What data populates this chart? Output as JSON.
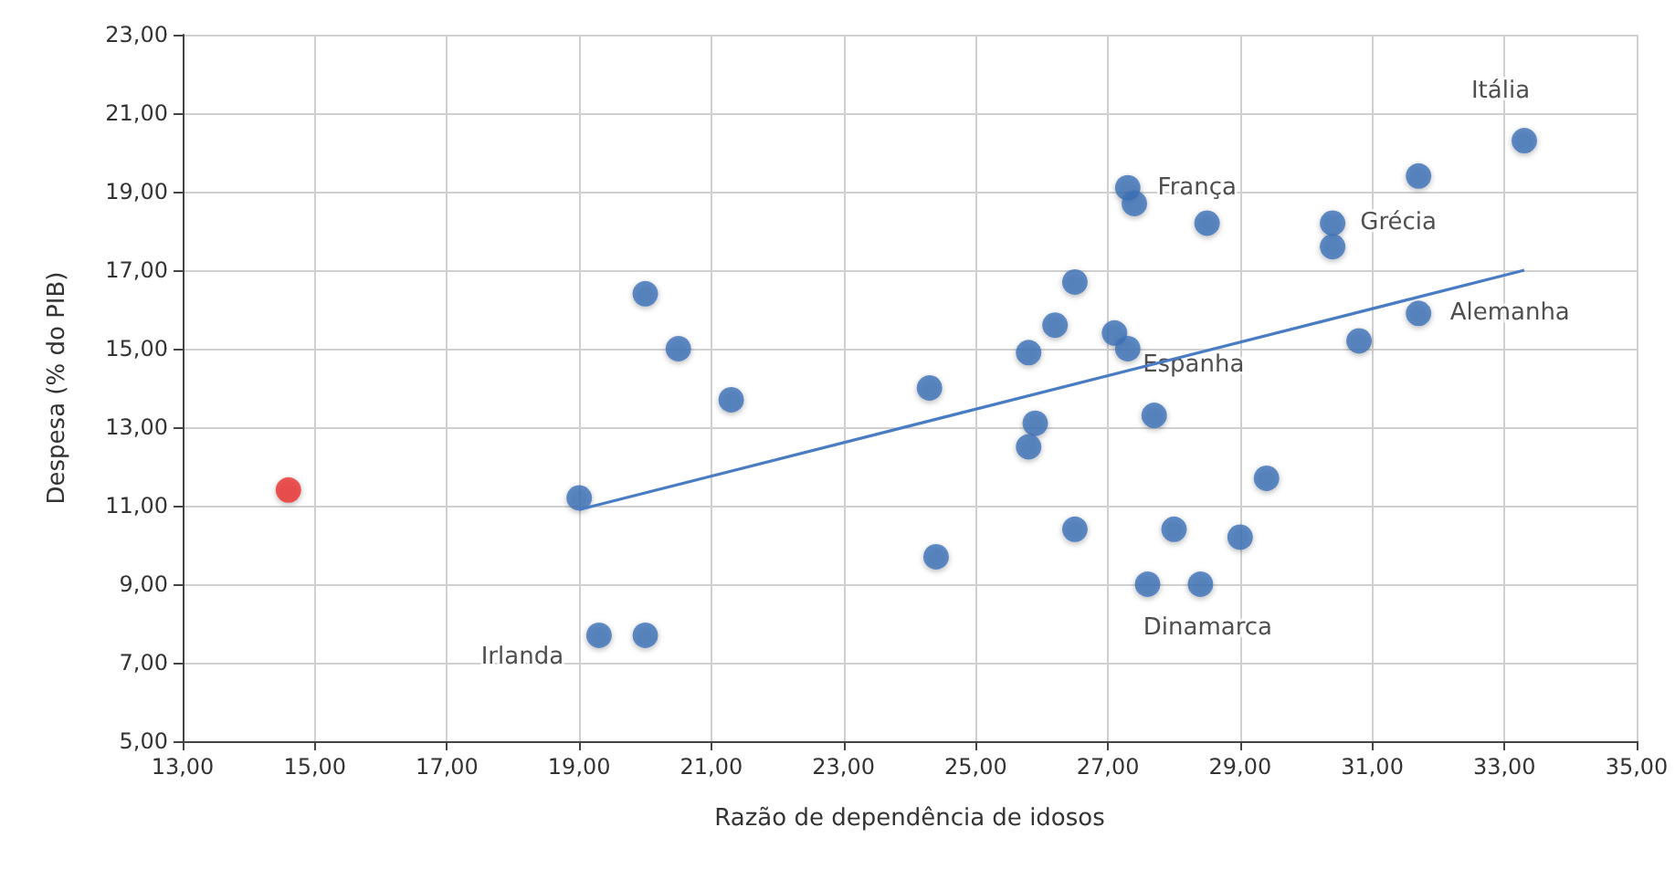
{
  "chart_data": {
    "type": "scatter",
    "xlabel": "Razão de dependência de idosos",
    "ylabel": "Despesa (% do PIB)",
    "grid": true,
    "marker": "circle",
    "xlim": [
      13,
      35
    ],
    "xticks": [
      {
        "value": 13,
        "label": "13,00"
      },
      {
        "value": 15,
        "label": "15,00"
      },
      {
        "value": 17,
        "label": "17,00"
      },
      {
        "value": 19,
        "label": "19,00"
      },
      {
        "value": 21,
        "label": "21,00"
      },
      {
        "value": 23,
        "label": "23,00"
      },
      {
        "value": 25,
        "label": "25,00"
      },
      {
        "value": 27,
        "label": "27,00"
      },
      {
        "value": 29,
        "label": "29,00"
      },
      {
        "value": 31,
        "label": "31,00"
      },
      {
        "value": 33,
        "label": "33,00"
      },
      {
        "value": 35,
        "label": "35,00"
      }
    ],
    "ylim": [
      5,
      23
    ],
    "yticks": [
      {
        "value": 5,
        "label": "5,00"
      },
      {
        "value": 7,
        "label": "7,00"
      },
      {
        "value": 9,
        "label": "9,00"
      },
      {
        "value": 11,
        "label": "11,00"
      },
      {
        "value": 13,
        "label": "13,00"
      },
      {
        "value": 15,
        "label": "15,00"
      },
      {
        "value": 17,
        "label": "17,00"
      },
      {
        "value": 19,
        "label": "19,00"
      },
      {
        "value": 21,
        "label": "21,00"
      },
      {
        "value": 23,
        "label": "23,00"
      }
    ],
    "series": [
      {
        "color": "#3b6fb6",
        "x": [
          19.0,
          19.3,
          20.0,
          20.0,
          20.5,
          21.3,
          24.3,
          24.4,
          25.8,
          26.2,
          26.5,
          25.9,
          25.8,
          26.5,
          27.1,
          27.3,
          27.3,
          27.4,
          28.5,
          27.7,
          27.6,
          28.0,
          28.4,
          29.0,
          29.4,
          30.4,
          30.4,
          30.8,
          31.7,
          31.7,
          33.3
        ],
        "values": [
          11.2,
          7.7,
          7.7,
          16.4,
          15.0,
          13.7,
          14.0,
          9.7,
          14.9,
          15.6,
          16.7,
          13.1,
          12.5,
          10.4,
          15.4,
          15.0,
          19.1,
          18.7,
          18.2,
          13.3,
          9.0,
          10.4,
          9.0,
          10.2,
          11.7,
          18.2,
          17.6,
          15.2,
          19.4,
          15.9,
          20.3
        ]
      },
      {
        "color": "#e8312f",
        "x": [
          14.6
        ],
        "values": [
          11.4
        ]
      },
      {
        "type": "line",
        "color": "#4a7cc4",
        "marker": "none",
        "x": [
          19.0,
          33.3
        ],
        "values": [
          10.9,
          17.0
        ]
      }
    ],
    "annotations": [
      {
        "text": "Itália",
        "x": 33.3,
        "y": 20.3
      },
      {
        "text": "França",
        "x": 27.3,
        "y": 19.1
      },
      {
        "text": "Grécia",
        "x": 30.4,
        "y": 18.2
      },
      {
        "text": "Alemanha",
        "x": 31.7,
        "y": 15.9
      },
      {
        "text": "Espanha",
        "x": 27.3,
        "y": 15.0
      },
      {
        "text": "Dinamarca",
        "x": 28.4,
        "y": 9.0
      },
      {
        "text": "Irlanda",
        "x": 19.3,
        "y": 7.7
      }
    ]
  }
}
